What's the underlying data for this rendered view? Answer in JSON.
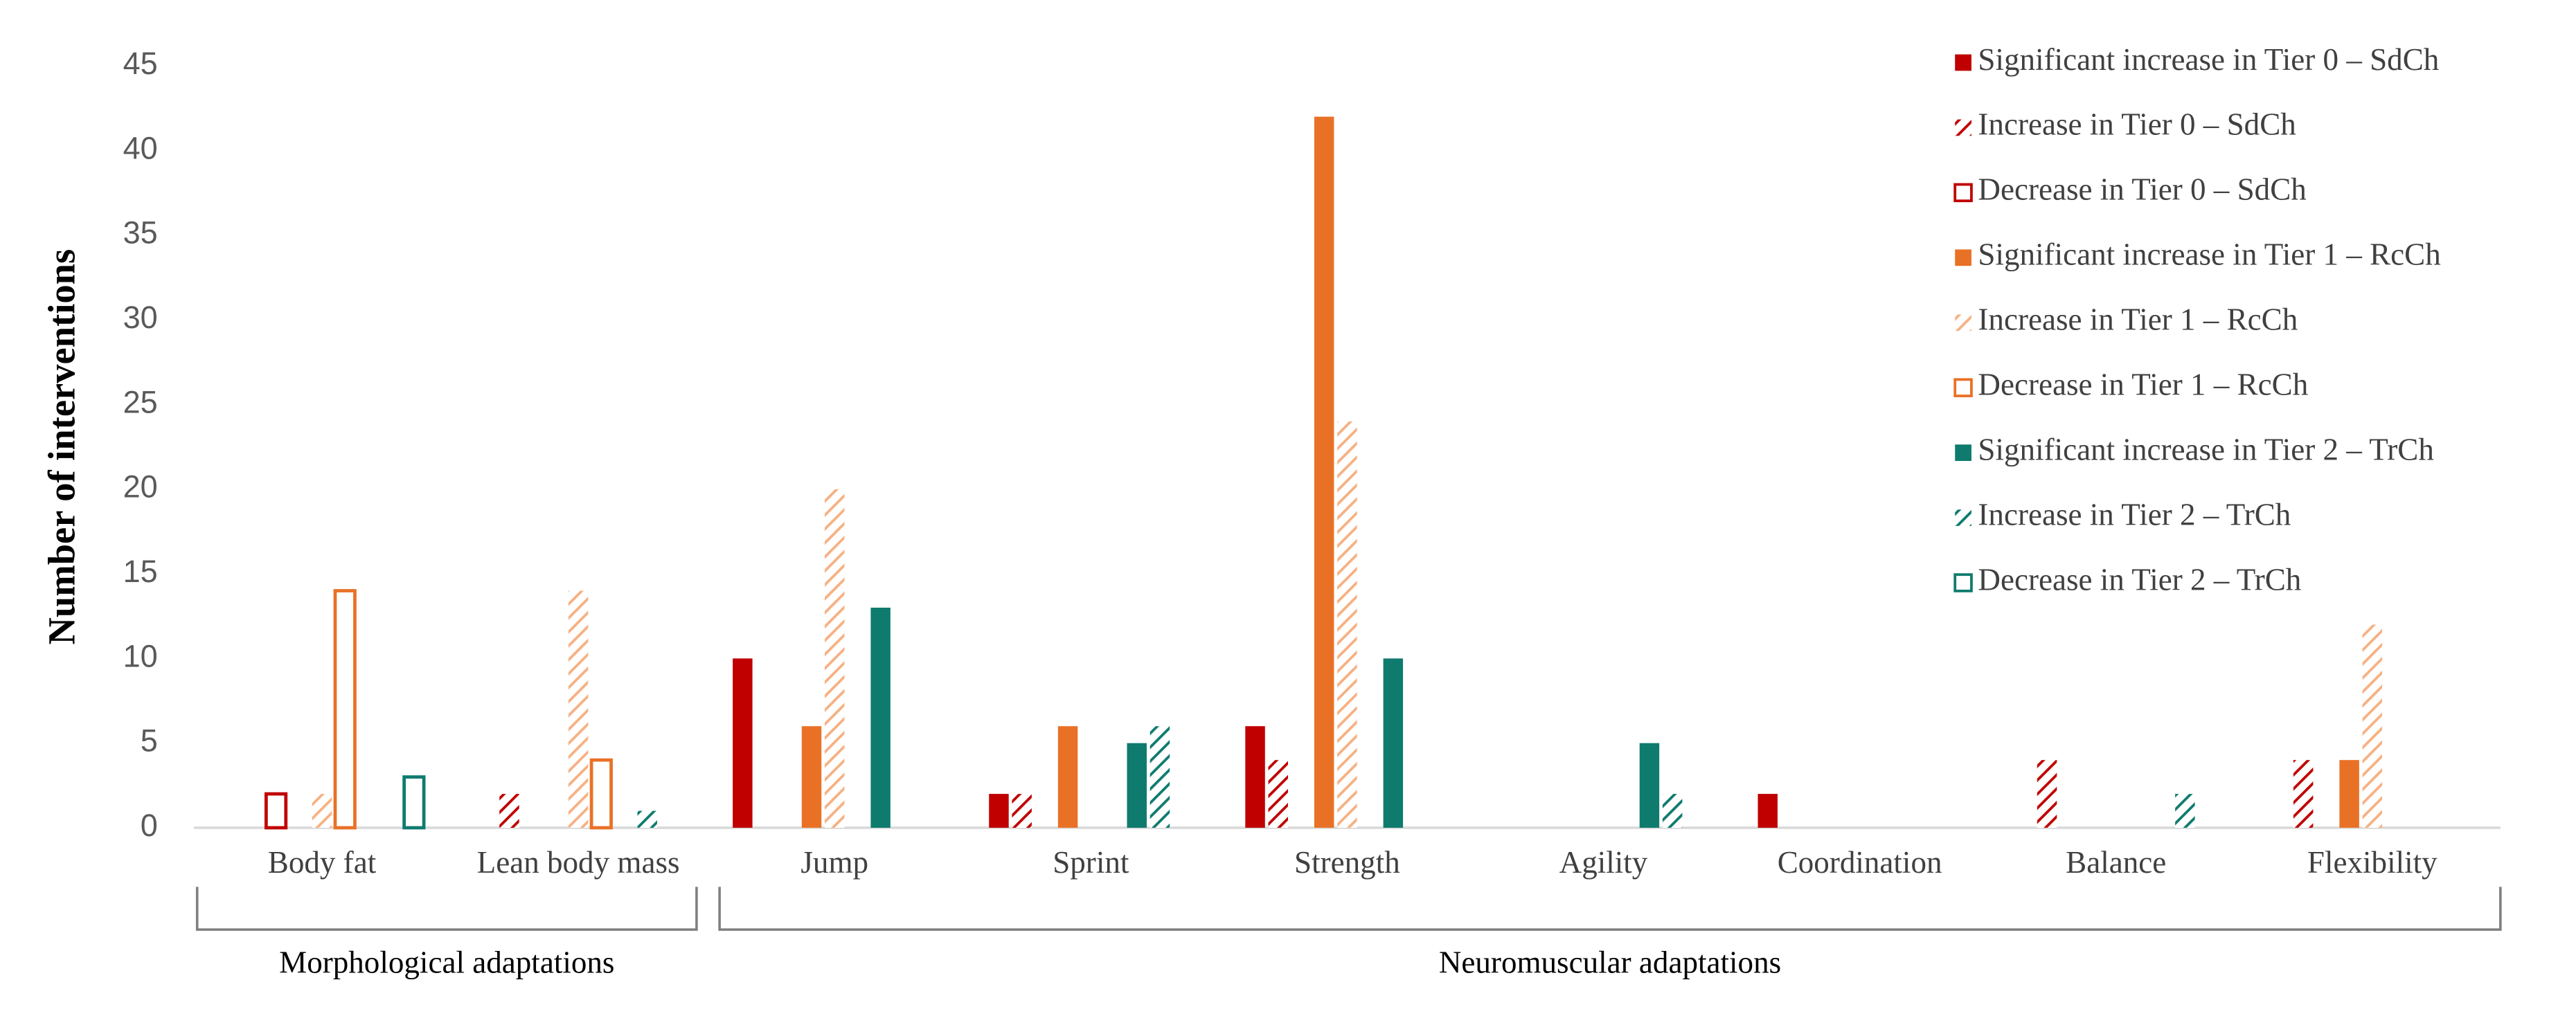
{
  "chart_data": {
    "type": "bar",
    "y_label": "Number of interventions",
    "categories": [
      "Body fat",
      "Lean body mass",
      "Jump",
      "Sprint",
      "Strength",
      "Agility",
      "Coordination",
      "Balance",
      "Flexibility"
    ],
    "groups": [
      "Morphological adaptations",
      "Neuromuscular adaptations"
    ],
    "ylim": [
      0,
      45
    ],
    "yticks": [
      0,
      5,
      10,
      15,
      20,
      25,
      30,
      35,
      40,
      45
    ],
    "legend": "top-right",
    "series": [
      {
        "name": "Significant increase in Tier 0 – SdCh",
        "color": "#c00000",
        "style": "solid",
        "values": [
          0,
          0,
          10,
          2,
          6,
          0,
          2,
          0,
          0
        ]
      },
      {
        "name": "Increase in Tier 0 – SdCh",
        "color": "#c00000",
        "style": "hatched",
        "values": [
          0,
          2,
          0,
          2,
          4,
          0,
          0,
          4,
          4
        ]
      },
      {
        "name": "Decrease in Tier 0 – SdCh",
        "color": "#c00000",
        "style": "outline",
        "values": [
          2,
          0,
          0,
          0,
          0,
          0,
          0,
          0,
          0
        ]
      },
      {
        "name": "Significant increase in Tier 1 – RcCh",
        "color": "#e97126",
        "style": "solid",
        "values": [
          0,
          0,
          6,
          6,
          42,
          0,
          0,
          0,
          4
        ]
      },
      {
        "name": "Increase in Tier 1 – RcCh",
        "color": "#f6b183",
        "style": "hatched",
        "values": [
          2,
          14,
          20,
          0,
          24,
          0,
          0,
          0,
          12
        ]
      },
      {
        "name": "Decrease in Tier 1 – RcCh",
        "color": "#e97126",
        "style": "outline",
        "values": [
          14,
          4,
          0,
          0,
          0,
          0,
          0,
          0,
          0
        ]
      },
      {
        "name": "Significant increase in Tier 2 – TrCh",
        "color": "#0f7b6f",
        "style": "solid",
        "values": [
          0,
          0,
          13,
          5,
          10,
          5,
          0,
          0,
          0
        ]
      },
      {
        "name": "Increase in Tier 2 – TrCh",
        "color": "#0f7b6f",
        "style": "hatched",
        "values": [
          0,
          1,
          0,
          6,
          0,
          2,
          0,
          2,
          0
        ]
      },
      {
        "name": "Decrease in Tier 2 – TrCh",
        "color": "#0f7b6f",
        "style": "outline",
        "values": [
          3,
          0,
          0,
          0,
          0,
          0,
          0,
          0,
          0
        ]
      }
    ]
  }
}
